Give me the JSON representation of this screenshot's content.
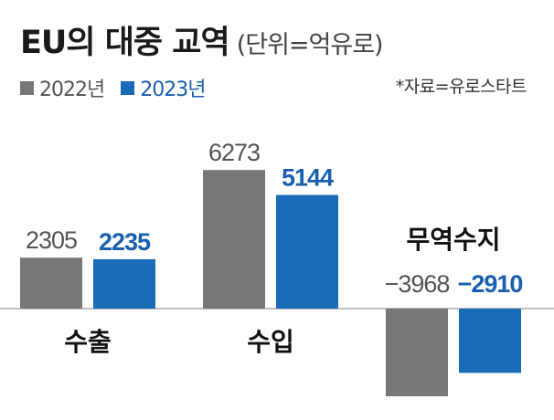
{
  "title": "EU의 대중 교역",
  "subtitle": "(단위=억유로)",
  "source": "*자료=유로스타트",
  "colors": {
    "y2022": "#777777",
    "y2023": "#1a6bb8",
    "axis": "#9a9a9a"
  },
  "chart_data": {
    "type": "bar",
    "categories": [
      "수출",
      "수입",
      "무역수지"
    ],
    "series": [
      {
        "name": "2022년",
        "values": [
          2305,
          6273,
          -3968
        ]
      },
      {
        "name": "2023년",
        "values": [
          2235,
          5144,
          -2910
        ]
      }
    ],
    "value_labels": [
      [
        "2305",
        "6273",
        "−3968"
      ],
      [
        "2235",
        "5144",
        "−2910"
      ]
    ],
    "legend_position": "top-left",
    "grid": false
  }
}
